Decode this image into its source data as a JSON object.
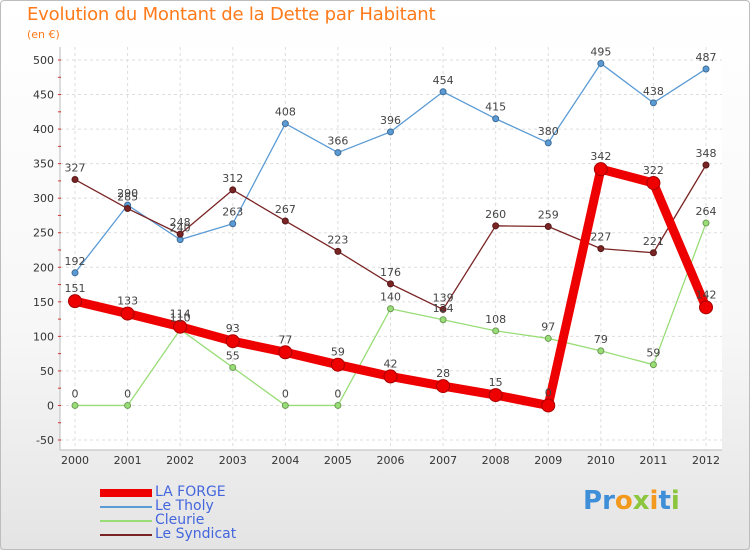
{
  "header": {
    "title": "Evolution du Montant de la Dette par Habitant",
    "subtitle": "(en €)"
  },
  "brand": {
    "text": "Proxiti",
    "colors": [
      "#3f8fd8",
      "#f39a1e",
      "#8cc63f"
    ]
  },
  "chart_data": {
    "type": "line",
    "title": "Evolution du Montant de la Dette par Habitant",
    "subtitle": "(en €)",
    "x": [
      "2000",
      "2001",
      "2002",
      "2003",
      "2004",
      "2005",
      "2006",
      "2007",
      "2008",
      "2009",
      "2010",
      "2011",
      "2012"
    ],
    "ylim": [
      -50,
      500
    ],
    "yticks": [
      -50,
      0,
      50,
      100,
      150,
      200,
      250,
      300,
      350,
      400,
      450,
      500
    ],
    "grid": true,
    "legend_position": "bottom-left",
    "series": [
      {
        "name": "LA FORGE",
        "color": "#ee0000",
        "emphasis": true,
        "values": [
          151,
          133,
          114,
          93,
          77,
          59,
          42,
          28,
          15,
          0,
          342,
          322,
          142
        ]
      },
      {
        "name": "Le Tholy",
        "color": "#5b9bd5",
        "emphasis": false,
        "values": [
          192,
          290,
          240,
          263,
          408,
          366,
          396,
          454,
          415,
          380,
          495,
          438,
          487
        ]
      },
      {
        "name": "Cleurie",
        "color": "#99dd77",
        "emphasis": false,
        "values": [
          0,
          0,
          110,
          55,
          0,
          0,
          140,
          124,
          108,
          97,
          79,
          59,
          264
        ]
      },
      {
        "name": "Le Syndicat",
        "color": "#7a2424",
        "emphasis": false,
        "values": [
          327,
          285,
          248,
          312,
          267,
          223,
          176,
          139,
          260,
          259,
          227,
          221,
          348
        ]
      }
    ]
  }
}
